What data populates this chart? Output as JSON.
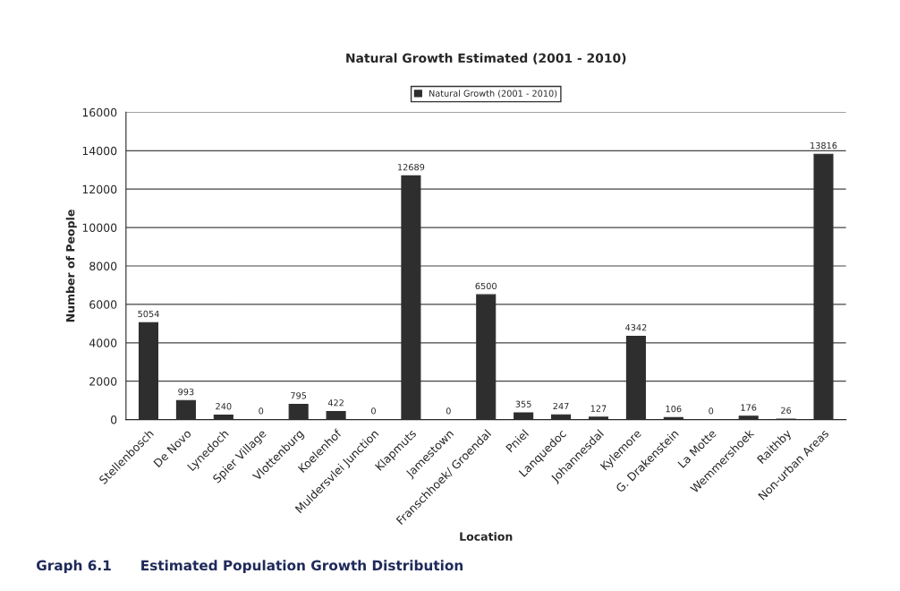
{
  "chart_data": {
    "type": "bar",
    "title": "Natural Growth Estimated (2001 - 2010)",
    "xlabel": "Location",
    "ylabel": "Number of People",
    "categories": [
      "Stellenbosch",
      "De Novo",
      "Lynedoch",
      "Spier Village",
      "Vlottenburg",
      "Koelenhof",
      "Muldersvlei Junction",
      "Klapmuts",
      "Jamestown",
      "Franschhoek/ Groendal",
      "Pniel",
      "Lanquedoc",
      "Johannesdal",
      "Kylemore",
      "G. Drakenstein",
      "La Motte",
      "Wemmershoek",
      "Raithby",
      "Non-urban Areas"
    ],
    "series": [
      {
        "name": "Natural Growth (2001 - 2010)",
        "color": "#2e2e2e",
        "values": [
          5054,
          993,
          240,
          0,
          795,
          422,
          0,
          12689,
          0,
          6500,
          355,
          247,
          127,
          4342,
          106,
          0,
          176,
          26,
          13816
        ]
      }
    ],
    "ylim": [
      0,
      16000
    ],
    "yticks": [
      0,
      2000,
      4000,
      6000,
      8000,
      10000,
      12000,
      14000,
      16000
    ],
    "grid": "y",
    "legend": "top",
    "data_labels": true,
    "annotations": [
      "Graph 6.1      Estimated Population Growth Distribution"
    ]
  }
}
